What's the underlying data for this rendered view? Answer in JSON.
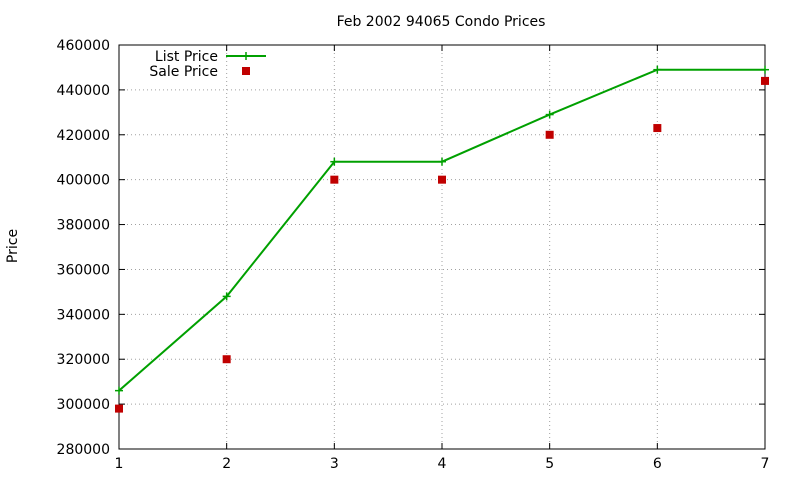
{
  "chart_data": {
    "type": "line",
    "title": "Feb 2002 94065 Condo Prices",
    "xlabel": "",
    "ylabel": "Price",
    "xlim": [
      1,
      7
    ],
    "ylim": [
      280000,
      460000
    ],
    "x_ticks": [
      1,
      2,
      3,
      4,
      5,
      6,
      7
    ],
    "y_ticks": [
      280000,
      300000,
      320000,
      340000,
      360000,
      380000,
      400000,
      420000,
      440000,
      460000
    ],
    "grid": true,
    "legend_position": "top-left",
    "x": [
      1,
      2,
      3,
      4,
      5,
      6,
      7
    ],
    "series": [
      {
        "name": "List Price",
        "style": "line+cross",
        "color": "#00a000",
        "values": [
          306000,
          348000,
          408000,
          408000,
          429000,
          449000,
          449000
        ]
      },
      {
        "name": "Sale Price",
        "style": "square",
        "color": "#c00000",
        "values": [
          298000,
          320000,
          400000,
          400000,
          420000,
          423000,
          444000
        ]
      }
    ]
  }
}
